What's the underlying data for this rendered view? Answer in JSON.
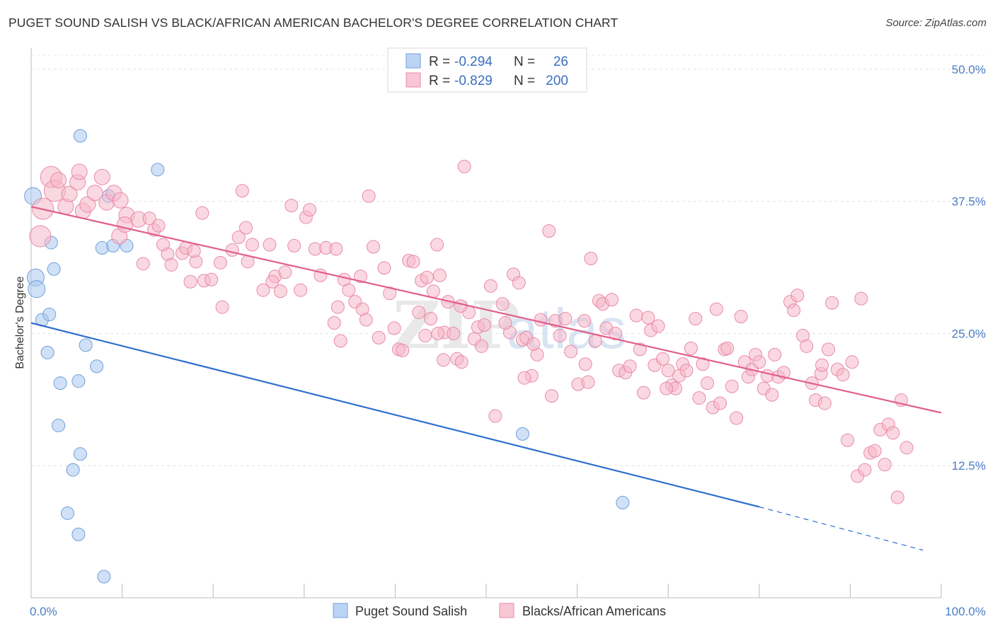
{
  "header": {
    "title": "PUGET SOUND SALISH VS BLACK/AFRICAN AMERICAN BACHELOR'S DEGREE CORRELATION CHART",
    "source": "Source: ZipAtlas.com"
  },
  "watermark": {
    "zip": "ZIP",
    "atlas": "atlas"
  },
  "legend": {
    "r_label": "R =",
    "n_label": "N =",
    "rows": [
      {
        "r": "-0.294",
        "n": "26",
        "color": "#a9c8f0"
      },
      {
        "r": "-0.829",
        "n": "200",
        "color": "#f5b8ca"
      }
    ]
  },
  "bottom_legend": [
    {
      "label": "Puget Sound Salish",
      "color": "#a9c8f0"
    },
    {
      "label": "Blacks/African Americans",
      "color": "#f5b8ca"
    }
  ],
  "chart_data": {
    "type": "scatter",
    "title": "PUGET SOUND SALISH VS BLACK/AFRICAN AMERICAN BACHELOR'S DEGREE CORRELATION CHART",
    "ylabel": "Bachelor's Degree",
    "xlabel": "",
    "xlim": [
      0,
      100
    ],
    "ylim": [
      0,
      52
    ],
    "x_tick_labels": [
      "0.0%",
      "100.0%"
    ],
    "y_ticks": [
      12.5,
      25.0,
      37.5,
      50.0
    ],
    "y_tick_labels": [
      "12.5%",
      "25.0%",
      "37.5%",
      "50.0%"
    ],
    "grid": true,
    "legend_position": "top-center",
    "series": [
      {
        "name": "Puget Sound Salish",
        "color": "#a9c8f0",
        "stroke": "#6f9fd8",
        "line_color": "#2f6fcf",
        "trend": {
          "x0": 0,
          "y0": 26.0,
          "x1": 80,
          "y1": 8.6,
          "dash_to_x": 98,
          "dash_to_y": 4.5
        },
        "points": [
          [
            0.2,
            38.0
          ],
          [
            0.5,
            30.3
          ],
          [
            0.6,
            29.2
          ],
          [
            1.2,
            26.3
          ],
          [
            2.0,
            26.8
          ],
          [
            1.8,
            23.2
          ],
          [
            2.2,
            33.6
          ],
          [
            2.5,
            31.1
          ],
          [
            3.2,
            20.3
          ],
          [
            3.0,
            16.3
          ],
          [
            4.6,
            12.1
          ],
          [
            4.0,
            8.0
          ],
          [
            5.2,
            6.0
          ],
          [
            5.4,
            13.6
          ],
          [
            6.0,
            23.9
          ],
          [
            7.2,
            21.9
          ],
          [
            7.8,
            33.1
          ],
          [
            8.0,
            2.0
          ],
          [
            5.4,
            43.7
          ],
          [
            8.5,
            38.0
          ],
          [
            9.0,
            33.3
          ],
          [
            10.5,
            33.3
          ],
          [
            13.9,
            40.5
          ],
          [
            5.2,
            20.5
          ],
          [
            54.0,
            15.5
          ],
          [
            65.0,
            9.0
          ]
        ]
      },
      {
        "name": "Blacks/African Americans",
        "color": "#f5b8ca",
        "stroke": "#e98aa8",
        "line_color": "#e0608a",
        "trend": {
          "x0": 0,
          "y0": 37.0,
          "x1": 100,
          "y1": 17.5
        },
        "points": [
          [
            1.0,
            34.2
          ],
          [
            1.3,
            36.8
          ],
          [
            2.2,
            39.8
          ],
          [
            2.6,
            38.5
          ],
          [
            3.0,
            39.5
          ],
          [
            3.8,
            37.0
          ],
          [
            4.2,
            38.2
          ],
          [
            5.1,
            39.3
          ],
          [
            5.3,
            40.3
          ],
          [
            5.7,
            36.6
          ],
          [
            6.2,
            37.2
          ],
          [
            7.0,
            38.3
          ],
          [
            7.8,
            39.8
          ],
          [
            8.3,
            37.4
          ],
          [
            9.1,
            38.3
          ],
          [
            9.7,
            34.2
          ],
          [
            10.5,
            36.2
          ],
          [
            11.8,
            35.8
          ],
          [
            12.3,
            31.6
          ],
          [
            13.0,
            35.9
          ],
          [
            13.5,
            34.8
          ],
          [
            14.5,
            33.4
          ],
          [
            15.0,
            32.5
          ],
          [
            15.4,
            31.5
          ],
          [
            16.6,
            32.6
          ],
          [
            17.0,
            33.1
          ],
          [
            17.5,
            29.9
          ],
          [
            18.1,
            31.8
          ],
          [
            19.0,
            30.0
          ],
          [
            18.8,
            36.4
          ],
          [
            19.8,
            30.1
          ],
          [
            20.8,
            31.7
          ],
          [
            21.0,
            27.5
          ],
          [
            22.1,
            32.9
          ],
          [
            22.8,
            34.1
          ],
          [
            23.8,
            31.8
          ],
          [
            23.6,
            35.0
          ],
          [
            24.3,
            33.4
          ],
          [
            23.2,
            38.5
          ],
          [
            25.5,
            29.1
          ],
          [
            26.2,
            33.4
          ],
          [
            26.8,
            30.4
          ],
          [
            27.4,
            29.0
          ],
          [
            27.9,
            30.8
          ],
          [
            28.6,
            37.1
          ],
          [
            28.9,
            33.3
          ],
          [
            29.6,
            29.1
          ],
          [
            30.2,
            36.0
          ],
          [
            30.6,
            36.7
          ],
          [
            31.2,
            33.0
          ],
          [
            31.8,
            30.5
          ],
          [
            32.4,
            33.1
          ],
          [
            33.3,
            26.0
          ],
          [
            33.7,
            27.5
          ],
          [
            34.0,
            24.3
          ],
          [
            34.4,
            30.1
          ],
          [
            34.9,
            29.1
          ],
          [
            35.6,
            28.0
          ],
          [
            36.4,
            27.3
          ],
          [
            36.8,
            26.3
          ],
          [
            37.1,
            38.0
          ],
          [
            37.6,
            33.2
          ],
          [
            38.2,
            24.6
          ],
          [
            38.8,
            31.2
          ],
          [
            39.4,
            28.8
          ],
          [
            39.9,
            25.5
          ],
          [
            40.4,
            23.5
          ],
          [
            40.8,
            23.4
          ],
          [
            41.5,
            31.9
          ],
          [
            42.0,
            31.8
          ],
          [
            42.6,
            27.0
          ],
          [
            42.9,
            30.0
          ],
          [
            43.5,
            30.3
          ],
          [
            43.9,
            26.4
          ],
          [
            44.2,
            29.0
          ],
          [
            44.9,
            30.5
          ],
          [
            44.6,
            33.4
          ],
          [
            45.4,
            25.1
          ],
          [
            45.8,
            28.0
          ],
          [
            46.4,
            25.0
          ],
          [
            46.8,
            22.6
          ],
          [
            47.3,
            22.3
          ],
          [
            47.6,
            40.8
          ],
          [
            48.1,
            27.0
          ],
          [
            48.7,
            24.5
          ],
          [
            49.1,
            25.6
          ],
          [
            49.5,
            23.8
          ],
          [
            49.8,
            25.8
          ],
          [
            50.5,
            29.5
          ],
          [
            51.0,
            17.2
          ],
          [
            51.8,
            27.8
          ],
          [
            52.6,
            25.1
          ],
          [
            53.0,
            30.6
          ],
          [
            53.6,
            29.8
          ],
          [
            54.0,
            24.4
          ],
          [
            54.4,
            24.6
          ],
          [
            55.0,
            21.0
          ],
          [
            55.6,
            23.0
          ],
          [
            56.0,
            26.3
          ],
          [
            56.9,
            34.7
          ],
          [
            57.2,
            19.1
          ],
          [
            57.6,
            26.2
          ],
          [
            58.1,
            24.8
          ],
          [
            58.7,
            26.4
          ],
          [
            59.3,
            23.3
          ],
          [
            60.1,
            20.2
          ],
          [
            60.8,
            26.2
          ],
          [
            61.2,
            20.4
          ],
          [
            61.5,
            32.1
          ],
          [
            62.0,
            24.3
          ],
          [
            62.4,
            28.1
          ],
          [
            62.8,
            27.8
          ],
          [
            63.2,
            25.5
          ],
          [
            63.8,
            28.2
          ],
          [
            64.2,
            25.0
          ],
          [
            64.6,
            21.5
          ],
          [
            65.3,
            21.3
          ],
          [
            65.8,
            21.9
          ],
          [
            66.5,
            26.7
          ],
          [
            66.9,
            23.5
          ],
          [
            67.3,
            19.4
          ],
          [
            67.8,
            26.5
          ],
          [
            68.1,
            25.3
          ],
          [
            68.5,
            22.0
          ],
          [
            68.9,
            25.7
          ],
          [
            69.4,
            22.6
          ],
          [
            70.0,
            21.5
          ],
          [
            70.4,
            20.1
          ],
          [
            70.8,
            19.8
          ],
          [
            71.2,
            21.0
          ],
          [
            71.6,
            22.1
          ],
          [
            72.0,
            21.5
          ],
          [
            72.5,
            23.6
          ],
          [
            73.0,
            26.4
          ],
          [
            73.4,
            18.9
          ],
          [
            73.8,
            22.1
          ],
          [
            74.3,
            20.3
          ],
          [
            74.9,
            18.0
          ],
          [
            75.3,
            27.3
          ],
          [
            75.7,
            18.4
          ],
          [
            76.2,
            23.5
          ],
          [
            76.5,
            23.6
          ],
          [
            77.0,
            20.0
          ],
          [
            77.5,
            17.0
          ],
          [
            78.0,
            26.6
          ],
          [
            78.4,
            22.3
          ],
          [
            78.8,
            20.9
          ],
          [
            79.2,
            21.6
          ],
          [
            79.6,
            23.0
          ],
          [
            80.0,
            22.3
          ],
          [
            80.5,
            19.8
          ],
          [
            80.9,
            21.0
          ],
          [
            81.4,
            19.2
          ],
          [
            81.7,
            23.0
          ],
          [
            82.1,
            20.9
          ],
          [
            82.7,
            21.3
          ],
          [
            83.4,
            28.0
          ],
          [
            83.8,
            27.2
          ],
          [
            84.2,
            28.6
          ],
          [
            84.8,
            24.8
          ],
          [
            85.2,
            23.8
          ],
          [
            85.8,
            20.3
          ],
          [
            86.2,
            18.7
          ],
          [
            86.8,
            21.2
          ],
          [
            87.2,
            18.4
          ],
          [
            87.6,
            23.5
          ],
          [
            88.0,
            27.9
          ],
          [
            88.6,
            21.6
          ],
          [
            89.2,
            21.1
          ],
          [
            89.7,
            14.9
          ],
          [
            90.2,
            22.3
          ],
          [
            90.8,
            11.5
          ],
          [
            91.2,
            28.3
          ],
          [
            91.6,
            12.1
          ],
          [
            92.2,
            13.7
          ],
          [
            92.7,
            13.9
          ],
          [
            93.3,
            15.9
          ],
          [
            93.8,
            12.6
          ],
          [
            94.2,
            16.4
          ],
          [
            94.7,
            15.6
          ],
          [
            95.2,
            9.5
          ],
          [
            95.6,
            18.7
          ],
          [
            96.2,
            14.2
          ],
          [
            54.2,
            20.8
          ],
          [
            44.7,
            25.0
          ],
          [
            36.2,
            30.4
          ],
          [
            26.5,
            29.9
          ],
          [
            45.3,
            22.5
          ],
          [
            52.1,
            26.0
          ],
          [
            60.9,
            22.1
          ],
          [
            69.8,
            19.8
          ],
          [
            86.9,
            22.0
          ],
          [
            17.9,
            32.8
          ],
          [
            33.5,
            33.0
          ],
          [
            10.3,
            35.3
          ],
          [
            14.0,
            35.2
          ],
          [
            9.8,
            37.6
          ],
          [
            47.2,
            27.6
          ],
          [
            43.3,
            24.8
          ],
          [
            55.2,
            24.0
          ]
        ]
      }
    ]
  }
}
